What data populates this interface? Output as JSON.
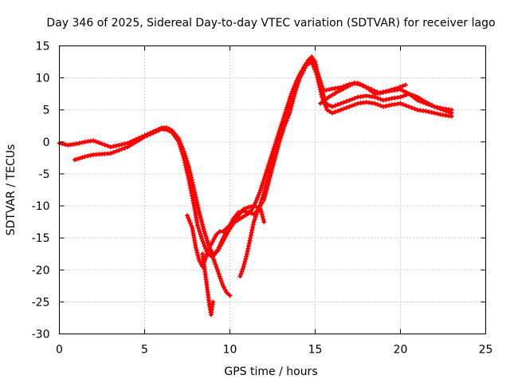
{
  "chart_data": {
    "type": "scatter",
    "title": "Day 346 of 2025, Sidereal Day-to-day VTEC variation (SDTVAR) for receiver lago",
    "xlabel": "GPS time / hours",
    "ylabel": "SDTVAR / TECUs",
    "xlim": [
      0,
      25
    ],
    "ylim": [
      -30,
      15
    ],
    "xticks": [
      0,
      5,
      10,
      15,
      20,
      25
    ],
    "yticks": [
      -30,
      -25,
      -20,
      -15,
      -10,
      -5,
      0,
      5,
      10,
      15
    ],
    "xtick_labels": [
      "0",
      "5",
      "10",
      "15",
      "20",
      "25"
    ],
    "ytick_labels": [
      "-30",
      "-25",
      "-20",
      "-15",
      "-10",
      "-5",
      "0",
      "5",
      "10",
      "15"
    ],
    "grid": true,
    "legend": "none",
    "marker": "+",
    "color": "#ff0000",
    "series": [
      {
        "name": "trace-1",
        "x": [
          0.0,
          0.5,
          1.0,
          1.5,
          2.0,
          2.5,
          3.0,
          3.5,
          4.0,
          4.5,
          5.0,
          5.5,
          6.0,
          6.3,
          6.6,
          7.0,
          7.3,
          7.6,
          7.9,
          8.2,
          8.5,
          8.8,
          9.0,
          9.3,
          9.6,
          9.9,
          10.2,
          10.5,
          10.8,
          11.1,
          11.4,
          11.7,
          12.0,
          12.3,
          12.6,
          12.9,
          13.2,
          13.5,
          13.8,
          14.1,
          14.4,
          14.6,
          14.8,
          15.0,
          15.2,
          15.5,
          16.0,
          16.5,
          17.0,
          17.5,
          18.0,
          18.5,
          19.0,
          19.5,
          20.0,
          20.5,
          21.0,
          21.5,
          22.0,
          22.5,
          23.0
        ],
        "y": [
          -0.2,
          -0.5,
          -0.3,
          0.0,
          0.2,
          -0.3,
          -0.8,
          -0.5,
          -0.2,
          0.4,
          1.0,
          1.6,
          2.2,
          2.2,
          1.8,
          0.5,
          -1.5,
          -4.0,
          -7.5,
          -11.0,
          -14.0,
          -16.5,
          -17.5,
          -17.0,
          -15.5,
          -14.0,
          -12.8,
          -11.5,
          -10.5,
          -10.2,
          -10.0,
          -10.3,
          -9.0,
          -6.0,
          -3.0,
          0.0,
          2.5,
          4.5,
          7.5,
          10.0,
          11.5,
          12.8,
          13.3,
          12.5,
          10.0,
          8.0,
          8.3,
          8.5,
          9.0,
          9.2,
          8.5,
          7.5,
          7.8,
          8.0,
          8.2,
          7.5,
          6.5,
          6.0,
          5.5,
          5.2,
          5.0
        ]
      },
      {
        "name": "trace-2",
        "x": [
          0.9,
          1.5,
          2.0,
          2.5,
          3.0,
          3.5,
          4.0,
          4.5,
          5.0,
          5.5,
          6.0,
          6.3,
          6.6,
          7.0,
          7.3,
          7.6,
          7.9,
          8.1,
          8.4,
          8.7,
          9.0,
          9.3,
          9.6,
          9.9,
          10.2,
          10.5,
          10.8,
          11.1,
          11.4,
          11.7,
          12.0,
          12.3,
          12.6,
          12.9,
          13.2,
          13.5,
          13.8,
          14.1,
          14.4,
          14.7,
          15.0,
          15.3,
          15.6,
          16.0,
          16.5,
          17.0,
          17.5,
          18.0,
          18.5,
          19.0,
          19.5,
          20.0,
          20.5,
          21.0,
          21.5,
          22.0,
          22.5,
          23.0
        ],
        "y": [
          -2.8,
          -2.3,
          -2.0,
          -1.9,
          -1.8,
          -1.3,
          -0.8,
          0.0,
          0.8,
          1.4,
          2.0,
          1.9,
          1.5,
          0.0,
          -2.5,
          -6.0,
          -10.0,
          -13.0,
          -15.5,
          -17.5,
          -18.0,
          -16.8,
          -15.0,
          -13.5,
          -12.0,
          -11.0,
          -10.8,
          -11.0,
          -11.3,
          -10.5,
          -8.0,
          -5.0,
          -2.0,
          1.0,
          3.5,
          6.0,
          8.5,
          10.5,
          12.0,
          13.0,
          12.0,
          9.5,
          6.0,
          5.5,
          6.0,
          6.5,
          7.0,
          7.2,
          7.0,
          6.5,
          6.8,
          7.0,
          7.5,
          7.0,
          6.2,
          5.5,
          5.0,
          4.5
        ]
      },
      {
        "name": "trace-3",
        "x": [
          7.5,
          7.8,
          8.0,
          8.2,
          8.4,
          8.6,
          8.8,
          9.0,
          9.2,
          9.4,
          9.6,
          9.8,
          10.0,
          10.3,
          10.6,
          10.9,
          11.2,
          11.5,
          11.8,
          12.1,
          12.4,
          12.7,
          13.0,
          13.3,
          13.6,
          13.9,
          14.2,
          14.5,
          14.8,
          15.1,
          15.4,
          15.7,
          16.0,
          16.5,
          17.0,
          17.5,
          18.0,
          18.5,
          19.0,
          19.5,
          20.0,
          20.5,
          21.0,
          21.5,
          22.0,
          22.5,
          23.0
        ],
        "y": [
          -11.5,
          -13.5,
          -16.5,
          -18.5,
          -19.5,
          -18.0,
          -16.5,
          -15.5,
          -14.5,
          -14.0,
          -14.0,
          -13.5,
          -13.0,
          -12.5,
          -12.0,
          -11.5,
          -11.0,
          -9.5,
          -7.5,
          -5.0,
          -2.5,
          0.0,
          2.5,
          5.0,
          7.5,
          9.5,
          11.0,
          12.0,
          12.5,
          10.5,
          7.0,
          5.0,
          4.5,
          5.0,
          5.5,
          6.0,
          6.2,
          6.0,
          5.5,
          5.8,
          6.0,
          5.5,
          5.0,
          4.8,
          4.5,
          4.2,
          4.0
        ]
      },
      {
        "name": "trace-4",
        "x": [
          8.4,
          8.5,
          8.6,
          8.7,
          8.8,
          8.9,
          9.0
        ],
        "y": [
          -17.5,
          -19.5,
          -21.5,
          -23.5,
          -25.5,
          -27.0,
          -25.0
        ]
      },
      {
        "name": "trace-5",
        "x": [
          8.8,
          9.0,
          9.2,
          9.4,
          9.6,
          9.8,
          10.0
        ],
        "y": [
          -17.0,
          -18.0,
          -19.5,
          -21.0,
          -22.5,
          -23.5,
          -24.0
        ]
      },
      {
        "name": "trace-6",
        "x": [
          10.6,
          10.8,
          11.0,
          11.2,
          11.4,
          11.6,
          11.8,
          12.0
        ],
        "y": [
          -21.0,
          -19.5,
          -17.5,
          -15.0,
          -12.5,
          -11.0,
          -10.5,
          -12.5
        ]
      },
      {
        "name": "trace-7",
        "x": [
          15.3,
          15.8,
          16.3,
          16.8,
          17.3,
          17.8,
          18.3,
          18.8,
          19.3,
          19.8,
          20.3
        ],
        "y": [
          6.0,
          7.0,
          7.8,
          8.5,
          9.2,
          8.8,
          8.2,
          7.6,
          8.0,
          8.4,
          8.9
        ]
      }
    ]
  }
}
